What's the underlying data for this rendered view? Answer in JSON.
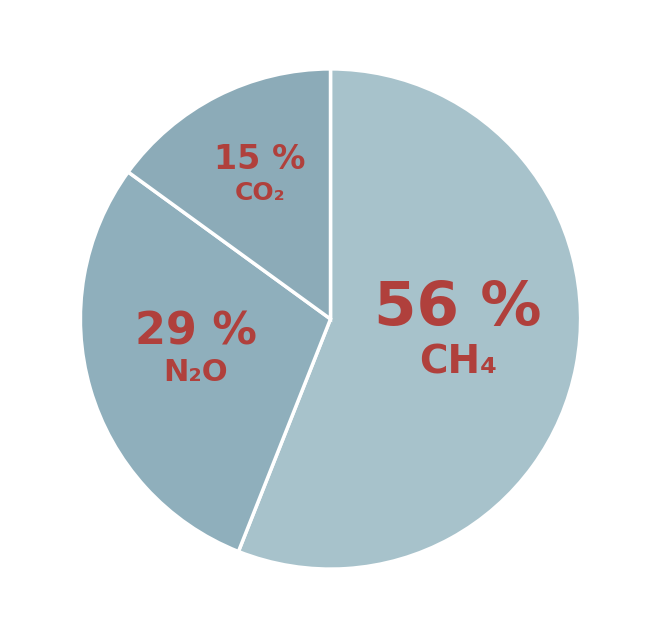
{
  "chart_data": {
    "type": "pie",
    "categories": [
      "CH₄",
      "N₂O",
      "CO₂"
    ],
    "values": [
      56,
      29,
      15
    ],
    "value_labels": [
      "56 %",
      "29 %",
      "15 %"
    ],
    "colors": [
      "#a7c2cb",
      "#8fafbc",
      "#8cabb8"
    ],
    "data_labels": true
  }
}
